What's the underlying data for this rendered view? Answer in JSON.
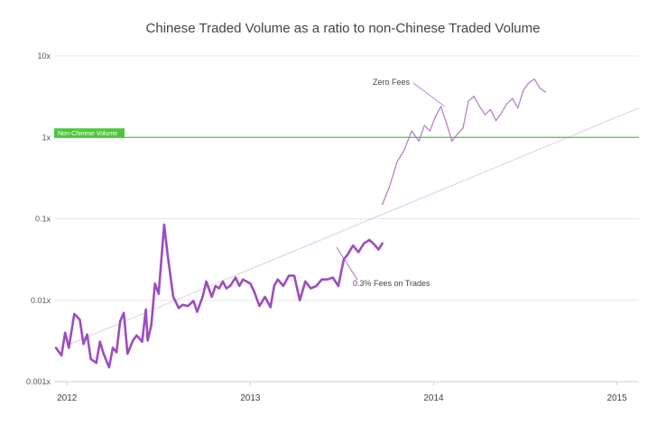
{
  "chart_data": {
    "type": "line",
    "title": "Chinese Traded Volume as a ratio to non-Chinese Traded Volume",
    "xlabel": "",
    "ylabel": "",
    "y_scale": "log",
    "ylim": [
      0.001,
      10
    ],
    "xlim": [
      2011.93,
      2015.12
    ],
    "y_ticks": [
      {
        "value": 10,
        "label": "10x"
      },
      {
        "value": 1,
        "label": "1x"
      },
      {
        "value": 0.1,
        "label": "0.1x"
      },
      {
        "value": 0.01,
        "label": "0.01x"
      },
      {
        "value": 0.001,
        "label": "0.001x"
      }
    ],
    "x_ticks": [
      {
        "value": 2012,
        "label": "2012"
      },
      {
        "value": 2013,
        "label": "2013"
      },
      {
        "value": 2014,
        "label": "2014"
      },
      {
        "value": 2015,
        "label": "2015"
      }
    ],
    "grid": true,
    "colors": {
      "series_thick": "#9b4dbe",
      "series_thin": "#b07ac8",
      "trend": "#e3c8ee",
      "reference": "#4cc63a",
      "grid": "#e6e6e6"
    },
    "reference_line": {
      "value": 1,
      "label": "Non-Chinese Volume"
    },
    "trend_line": {
      "x": [
        2012.0,
        2015.12
      ],
      "y": [
        0.0028,
        2.3
      ]
    },
    "series": [
      {
        "style": "thick",
        "x": [
          2011.94,
          2011.97,
          2011.99,
          2012.01,
          2012.04,
          2012.07,
          2012.09,
          2012.11,
          2012.13,
          2012.16,
          2012.18,
          2012.2,
          2012.23,
          2012.25,
          2012.27,
          2012.29,
          2012.31,
          2012.33,
          2012.36,
          2012.38,
          2012.41,
          2012.43,
          2012.44,
          2012.46,
          2012.48,
          2012.5,
          2012.53,
          2012.55,
          2012.58,
          2012.61,
          2012.63,
          2012.66,
          2012.69,
          2012.71,
          2012.74,
          2012.76,
          2012.79,
          2012.81,
          2012.83,
          2012.85,
          2012.87,
          2012.89,
          2012.92,
          2012.94,
          2012.96,
          2012.98,
          2013.0,
          2013.02,
          2013.05,
          2013.08,
          2013.11,
          2013.13,
          2013.15,
          2013.18,
          2013.21,
          2013.24,
          2013.27,
          2013.3,
          2013.33,
          2013.36,
          2013.39,
          2013.42,
          2013.45,
          2013.48,
          2013.51,
          2013.53,
          2013.56,
          2013.59,
          2013.62,
          2013.65,
          2013.67,
          2013.7,
          2013.72
        ],
        "y": [
          0.0026,
          0.0021,
          0.004,
          0.0026,
          0.0068,
          0.0058,
          0.0029,
          0.0038,
          0.0019,
          0.0017,
          0.0031,
          0.0022,
          0.0015,
          0.0026,
          0.0023,
          0.0055,
          0.007,
          0.0022,
          0.0032,
          0.0037,
          0.0031,
          0.0077,
          0.0032,
          0.005,
          0.016,
          0.012,
          0.085,
          0.035,
          0.011,
          0.008,
          0.0088,
          0.0085,
          0.0098,
          0.0072,
          0.011,
          0.017,
          0.011,
          0.015,
          0.014,
          0.017,
          0.014,
          0.015,
          0.019,
          0.015,
          0.018,
          0.017,
          0.016,
          0.013,
          0.0085,
          0.011,
          0.0082,
          0.015,
          0.018,
          0.015,
          0.02,
          0.02,
          0.01,
          0.017,
          0.014,
          0.015,
          0.018,
          0.018,
          0.019,
          0.015,
          0.032,
          0.036,
          0.047,
          0.039,
          0.05,
          0.055,
          0.05,
          0.042,
          0.05
        ]
      },
      {
        "style": "thin",
        "x": [
          2013.72,
          2013.76,
          2013.8,
          2013.84,
          2013.88,
          2013.92,
          2013.95,
          2013.98,
          2014.01,
          2014.04,
          2014.07,
          2014.1,
          2014.13,
          2014.16,
          2014.19,
          2014.22,
          2014.25,
          2014.28,
          2014.31,
          2014.34,
          2014.37,
          2014.4,
          2014.43,
          2014.46,
          2014.49,
          2014.52,
          2014.55,
          2014.58,
          2014.61
        ],
        "y": [
          0.15,
          0.25,
          0.5,
          0.7,
          1.2,
          0.9,
          1.4,
          1.2,
          1.8,
          2.4,
          1.5,
          0.9,
          1.1,
          1.3,
          2.8,
          3.2,
          2.4,
          1.9,
          2.2,
          1.6,
          2.0,
          2.6,
          3.0,
          2.3,
          3.8,
          4.7,
          5.2,
          4.0,
          3.6
        ]
      }
    ],
    "annotations": [
      {
        "text": "Zero Fees",
        "x": 2014.06,
        "y": 2.4
      },
      {
        "text": "0.3% Fees on Trades",
        "x": 2013.47,
        "y": 0.045
      }
    ]
  }
}
